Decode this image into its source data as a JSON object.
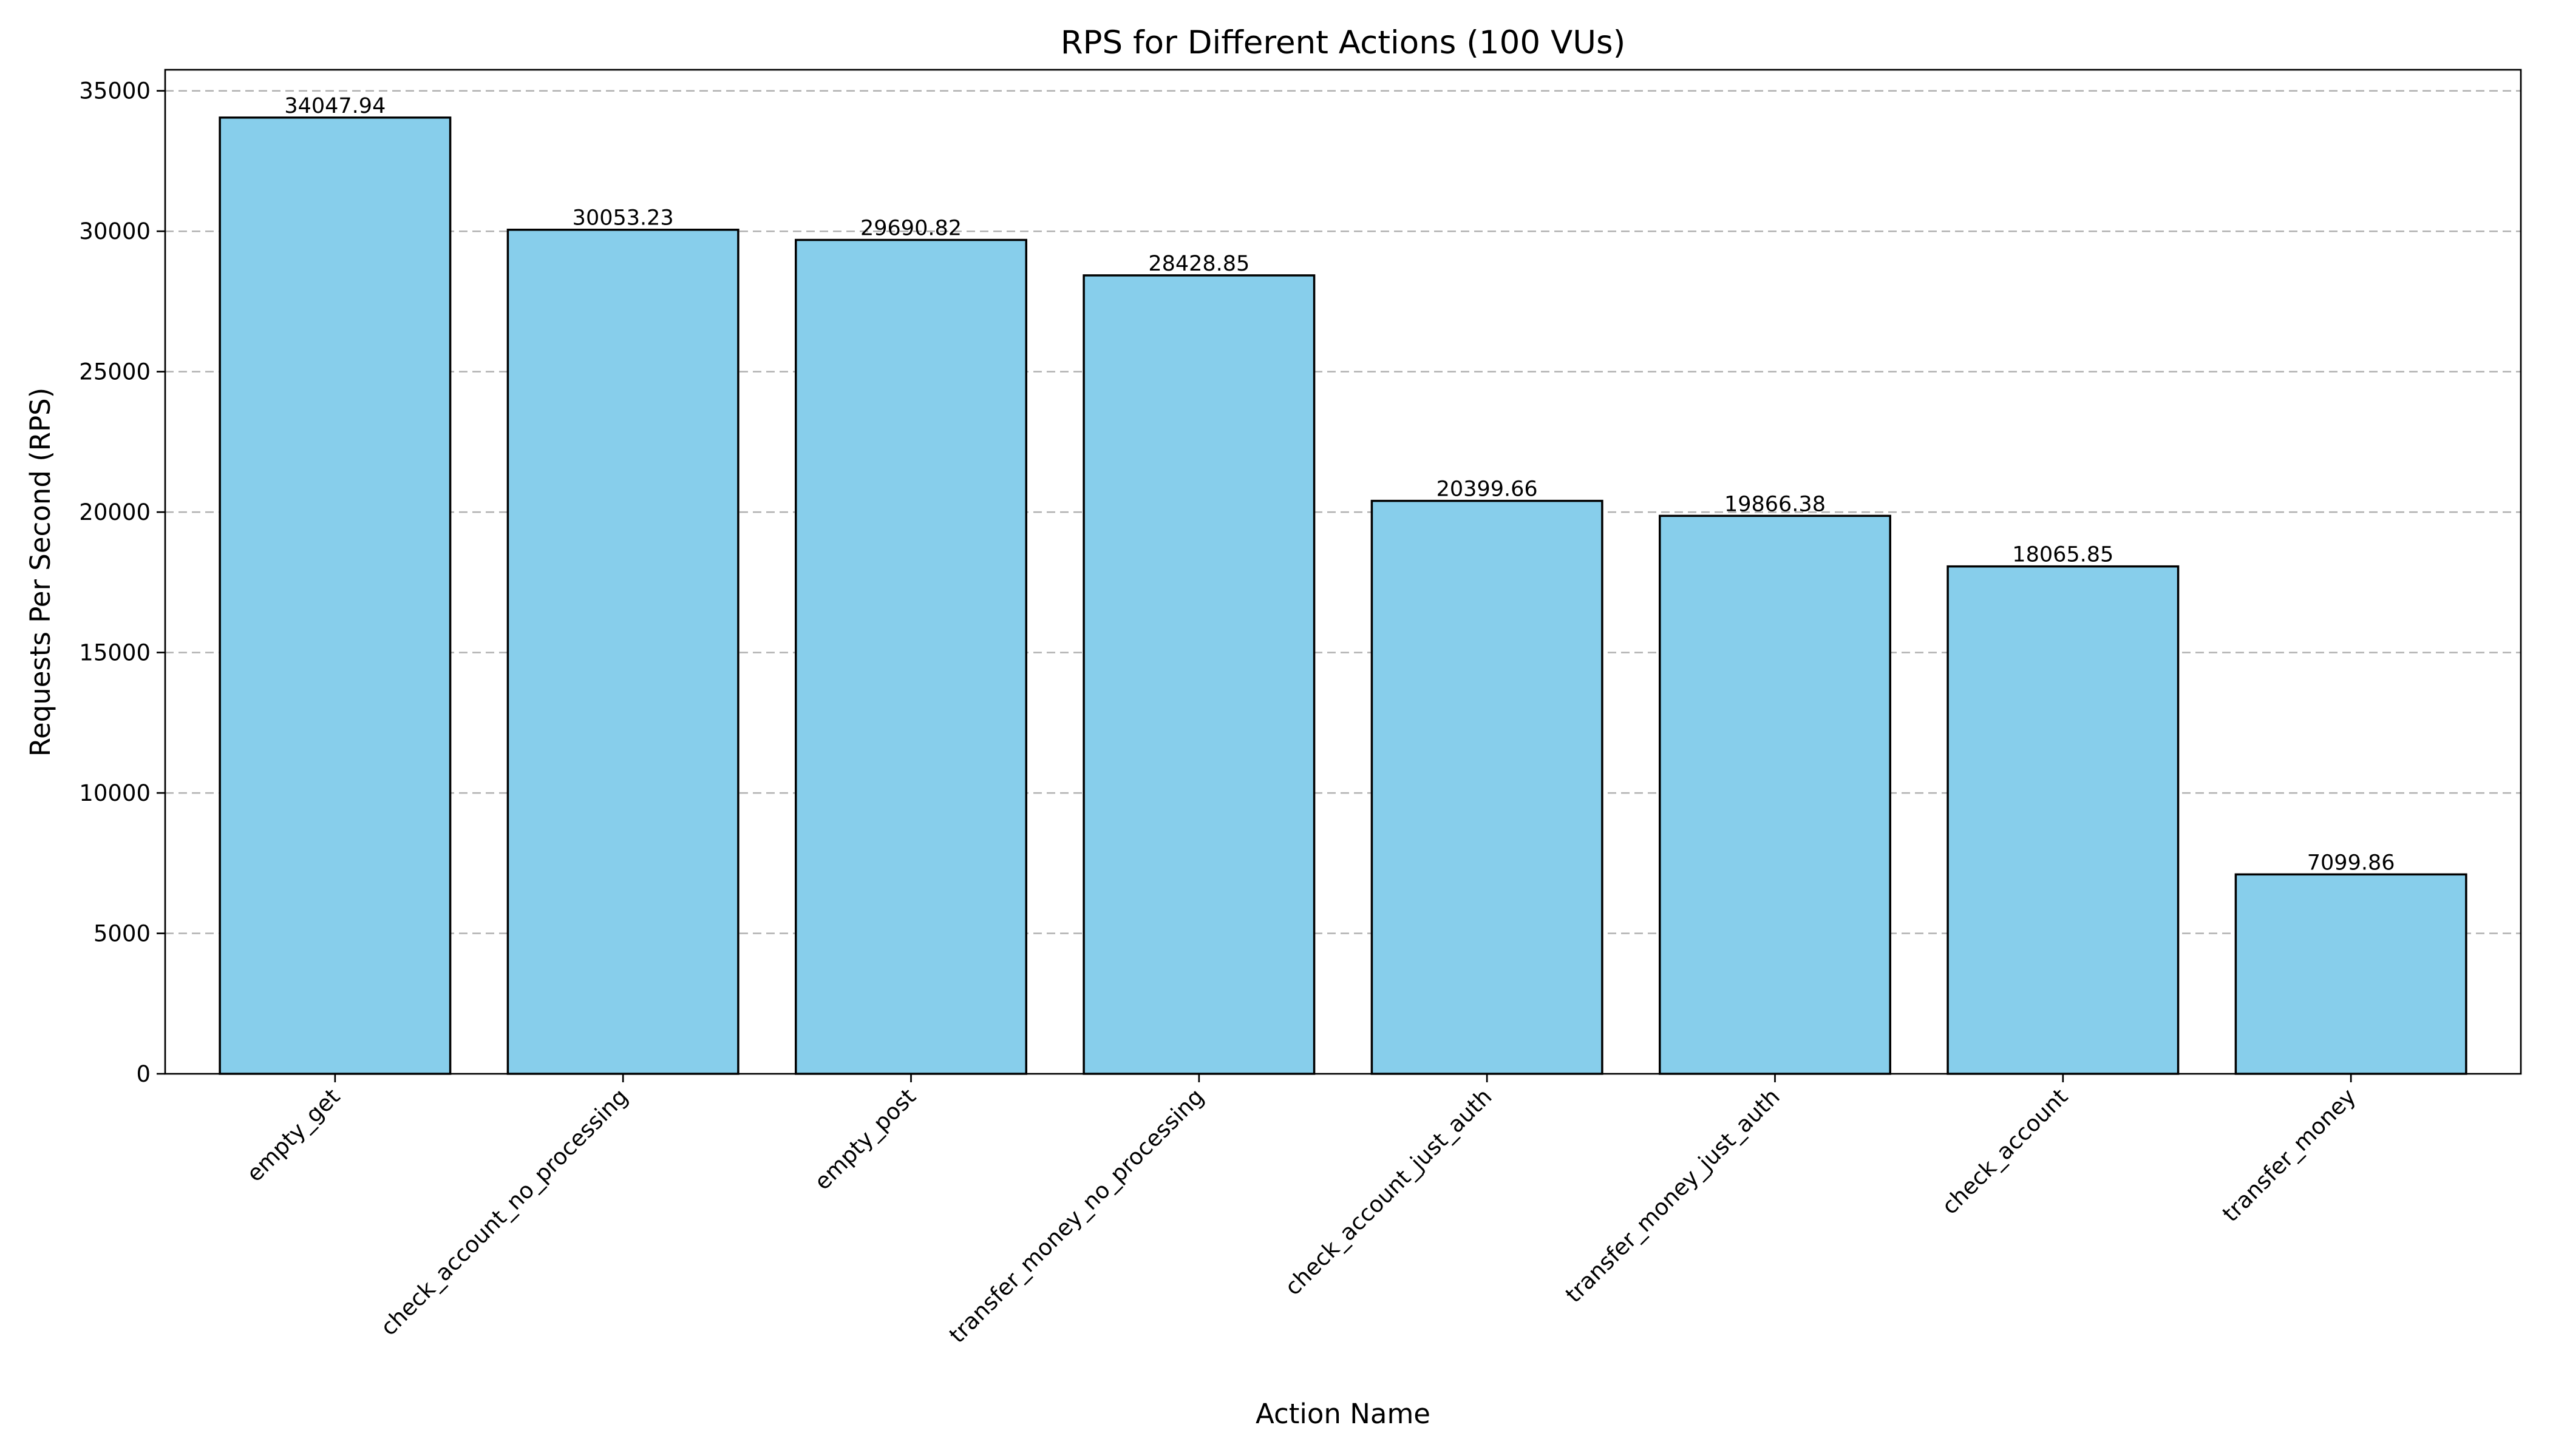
{
  "chart_data": {
    "type": "bar",
    "title": "RPS for Different Actions (100 VUs)",
    "xlabel": "Action Name",
    "ylabel": "Requests Per Second (RPS)",
    "categories": [
      "empty_get",
      "check_account_no_processing",
      "empty_post",
      "transfer_money_no_processing",
      "check_account_just_auth",
      "transfer_money_just_auth",
      "check_account",
      "transfer_money"
    ],
    "values": [
      34047.94,
      30053.23,
      29690.82,
      28428.85,
      20399.66,
      19866.38,
      18065.85,
      7099.86
    ],
    "data_labels": [
      "34047.94",
      "30053.23",
      "29690.82",
      "28428.85",
      "20399.66",
      "19866.38",
      "18065.85",
      "7099.86"
    ],
    "ylim": [
      0,
      35750
    ],
    "yticks": [
      0,
      5000,
      10000,
      15000,
      20000,
      25000,
      30000,
      35000
    ],
    "ytick_labels": [
      "0",
      "5000",
      "10000",
      "15000",
      "20000",
      "25000",
      "30000",
      "35000"
    ],
    "grid": "y-dashed",
    "bar_color": "#87ceeb",
    "edge_color": "#000000"
  }
}
